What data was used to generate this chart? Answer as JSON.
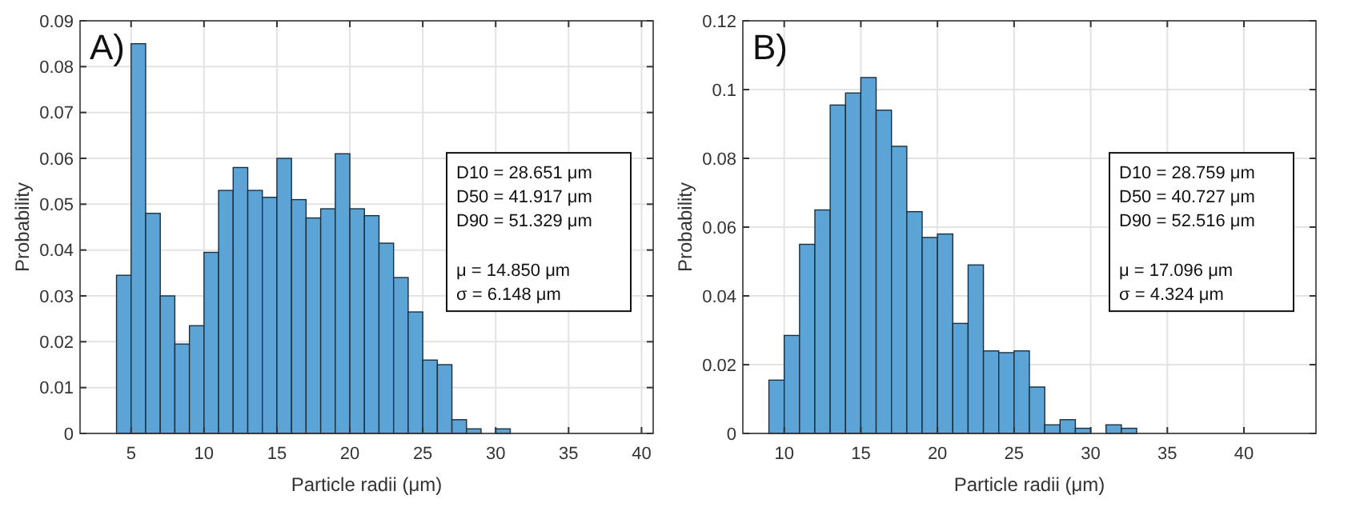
{
  "chart_data": [
    {
      "type": "histogram",
      "xlabel": "Particle radii (μm)",
      "ylabel": "Probability",
      "color": "#5ca3d6",
      "grid": true,
      "xlim": [
        1.5,
        40.8
      ],
      "xticks": [
        5,
        10,
        15,
        20,
        25,
        30,
        35,
        40
      ],
      "ylim": [
        0,
        0.09
      ],
      "yticks": [
        0,
        0.01,
        0.02,
        0.03,
        0.04,
        0.05,
        0.06,
        0.07,
        0.08,
        0.09
      ],
      "bins": [
        4,
        5,
        6,
        7,
        8,
        9,
        10,
        11,
        12,
        13,
        14,
        15,
        16,
        17,
        18,
        19,
        20,
        21,
        22,
        23,
        24,
        25,
        26,
        27,
        28,
        29,
        30,
        31,
        32,
        33,
        34,
        35,
        36,
        37,
        38
      ],
      "values": [
        0.0345,
        0.085,
        0.048,
        0.03,
        0.0195,
        0.0235,
        0.0395,
        0.053,
        0.058,
        0.053,
        0.0515,
        0.06,
        0.051,
        0.047,
        0.049,
        0.061,
        0.049,
        0.0475,
        0.0415,
        0.034,
        0.0265,
        0.016,
        0.015,
        0.003,
        0.001,
        0,
        0.001,
        0,
        0,
        0,
        0,
        null,
        0,
        0
      ],
      "annotations": [
        "A)",
        "D10 = 28.651 μm",
        "D50 = 41.917 μm",
        "D90 = 51.329 μm",
        "μ = 14.850 μm",
        "σ = 6.148 μm"
      ]
    },
    {
      "type": "histogram",
      "xlabel": "Particle radii (μm)",
      "ylabel": "Probability",
      "color": "#5ca3d6",
      "grid": true,
      "xlim": [
        7.3,
        44.7
      ],
      "xticks": [
        10,
        15,
        20,
        25,
        30,
        35,
        40
      ],
      "ylim": [
        0,
        0.12
      ],
      "yticks": [
        0,
        0.02,
        0.04,
        0.06,
        0.08,
        0.1,
        0.12
      ],
      "bins": [
        9,
        10,
        11,
        12,
        13,
        14,
        15,
        16,
        17,
        18,
        19,
        20,
        21,
        22,
        23,
        24,
        25,
        26,
        27,
        28,
        29,
        30,
        31,
        32,
        33,
        34,
        35,
        36,
        37,
        38,
        39,
        40,
        41,
        42
      ],
      "values": [
        0.0155,
        0.0285,
        0.055,
        0.065,
        0.0955,
        0.099,
        0.1035,
        0.094,
        0.0835,
        0.0645,
        0.057,
        0.058,
        0.032,
        0.049,
        0.024,
        0.0235,
        0.024,
        0.0135,
        0.0025,
        0.004,
        0.0015,
        0,
        0.0025,
        0.0015,
        0,
        0,
        0,
        0,
        0,
        0,
        0,
        0,
        0
      ],
      "annotations": [
        "B)",
        "D10 = 28.759 μm",
        "D50 = 40.727 μm",
        "D90 = 52.516 μm",
        "μ = 17.096 μm",
        "σ = 4.324 μm"
      ]
    }
  ]
}
